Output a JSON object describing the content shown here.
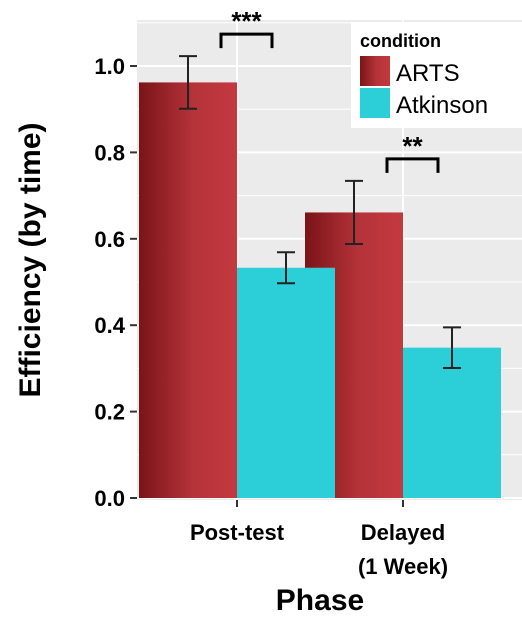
{
  "chart_data": {
    "type": "bar",
    "categories": [
      [
        "Post-test"
      ],
      [
        "Delayed",
        "(1 Week)"
      ]
    ],
    "series": [
      {
        "name": "ARTS",
        "values": [
          0.962,
          0.661
        ],
        "error": [
          0.061,
          0.073
        ]
      },
      {
        "name": "Atkinson",
        "values": [
          0.533,
          0.348
        ],
        "error": [
          0.036,
          0.047
        ]
      }
    ],
    "xlabel": "Phase",
    "ylabel": "Efficiency (by time)",
    "ylim": [
      0,
      1.1
    ],
    "yticks": [
      "0.0",
      "0.2",
      "0.4",
      "0.6",
      "0.8",
      "1.0"
    ],
    "ytick_values": [
      0,
      0.2,
      0.4,
      0.6,
      0.8,
      1.0
    ],
    "grid": true,
    "legend": {
      "title": "condition",
      "position": "top-right"
    },
    "annotations": [
      {
        "text": "***",
        "category": 0
      },
      {
        "text": "**",
        "category": 1
      }
    ],
    "colors": {
      "ARTS": "#c0393c",
      "ARTS_dark": "#7a1417",
      "Atkinson": "#2ccfd8",
      "panel": "#ebebeb",
      "grid": "#ffffff"
    }
  }
}
